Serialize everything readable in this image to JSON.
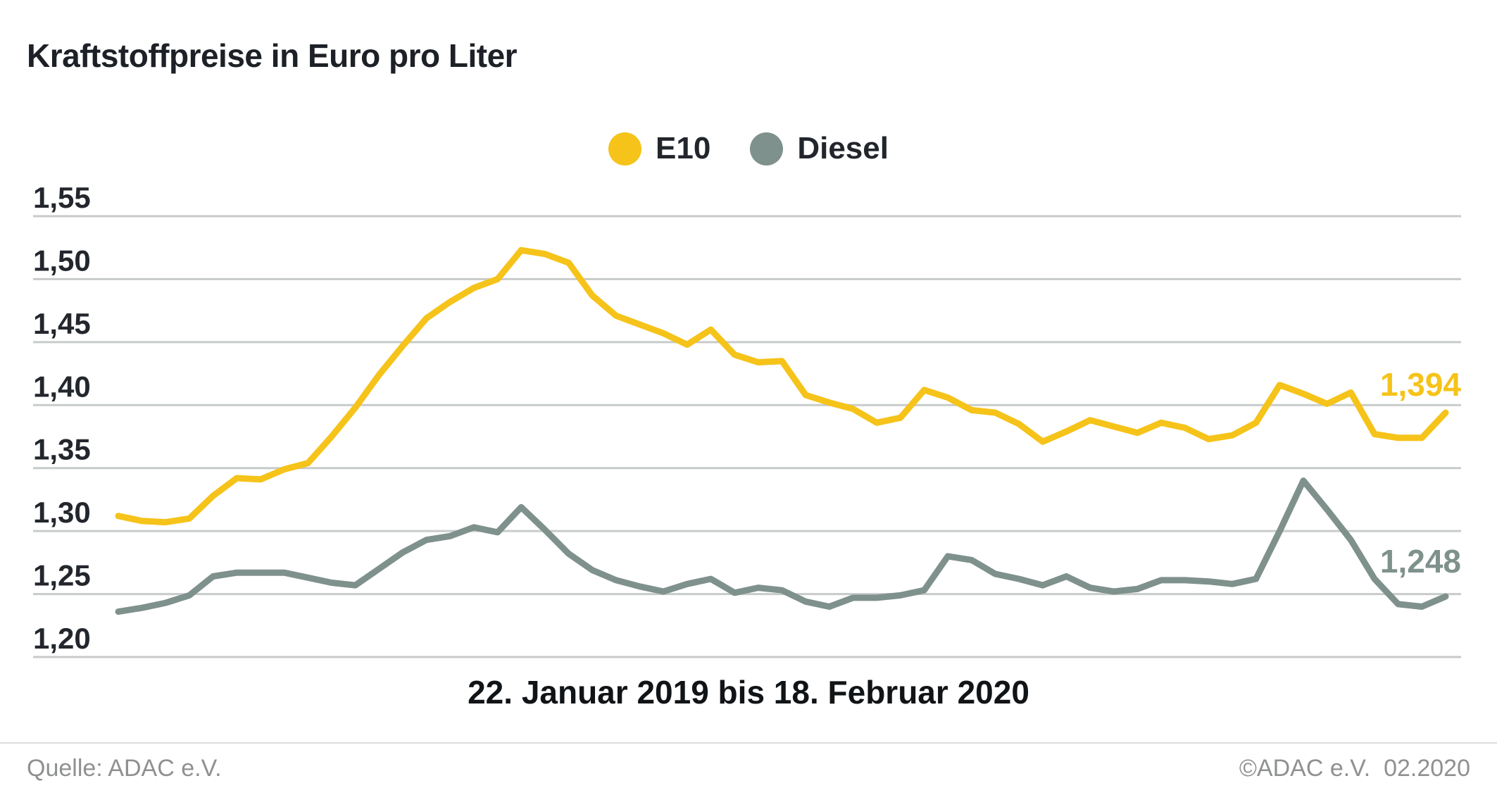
{
  "title": "Kraftstoffpreise in Euro pro Liter",
  "legend": [
    {
      "label": "E10",
      "color": "#F5C319"
    },
    {
      "label": "Diesel",
      "color": "#7F918C"
    }
  ],
  "footer": {
    "source": "Quelle: ADAC e.V.",
    "copyright": "©ADAC e.V.  02.2020"
  },
  "chart_data": {
    "type": "line",
    "title": "Kraftstoffpreise in Euro pro Liter",
    "x_range_label": "22. Januar 2019 bis 18. Februar 2020",
    "x_start": "22. Januar 2019",
    "x_end": "18. Februar 2020",
    "interval": "weekly",
    "ylabel": "Euro pro Liter",
    "ylim": [
      1.2,
      1.55
    ],
    "yticks": [
      "1,55",
      "1,50",
      "1,45",
      "1,40",
      "1,35",
      "1,30",
      "1,25",
      "1,20"
    ],
    "ytick_values": [
      1.55,
      1.5,
      1.45,
      1.4,
      1.35,
      1.3,
      1.25,
      1.2
    ],
    "grid": true,
    "legend_position": "top-center",
    "gridline_color": "#c7cbca",
    "series": [
      {
        "name": "E10",
        "color": "#F5C319",
        "end_label": "1,394",
        "end_value": 1.394,
        "values": [
          1.312,
          1.308,
          1.307,
          1.31,
          1.328,
          1.342,
          1.341,
          1.349,
          1.354,
          1.375,
          1.398,
          1.424,
          1.447,
          1.469,
          1.482,
          1.493,
          1.5,
          1.523,
          1.52,
          1.513,
          1.487,
          1.471,
          1.464,
          1.457,
          1.448,
          1.46,
          1.44,
          1.434,
          1.435,
          1.408,
          1.402,
          1.397,
          1.386,
          1.39,
          1.412,
          1.406,
          1.396,
          1.394,
          1.385,
          1.371,
          1.379,
          1.388,
          1.383,
          1.378,
          1.386,
          1.382,
          1.373,
          1.376,
          1.386,
          1.416,
          1.409,
          1.401,
          1.41,
          1.377,
          1.374,
          1.374,
          1.394
        ]
      },
      {
        "name": "Diesel",
        "color": "#7F918C",
        "end_label": "1,248",
        "end_value": 1.248,
        "values": [
          1.236,
          1.239,
          1.243,
          1.249,
          1.264,
          1.267,
          1.267,
          1.267,
          1.263,
          1.259,
          1.257,
          1.27,
          1.283,
          1.293,
          1.296,
          1.303,
          1.299,
          1.319,
          1.301,
          1.282,
          1.269,
          1.261,
          1.256,
          1.252,
          1.258,
          1.262,
          1.251,
          1.255,
          1.253,
          1.244,
          1.24,
          1.247,
          1.247,
          1.249,
          1.253,
          1.28,
          1.277,
          1.266,
          1.262,
          1.257,
          1.264,
          1.255,
          1.252,
          1.254,
          1.261,
          1.261,
          1.26,
          1.258,
          1.262,
          1.3,
          1.34,
          1.317,
          1.293,
          1.262,
          1.242,
          1.24,
          1.248
        ]
      }
    ]
  }
}
